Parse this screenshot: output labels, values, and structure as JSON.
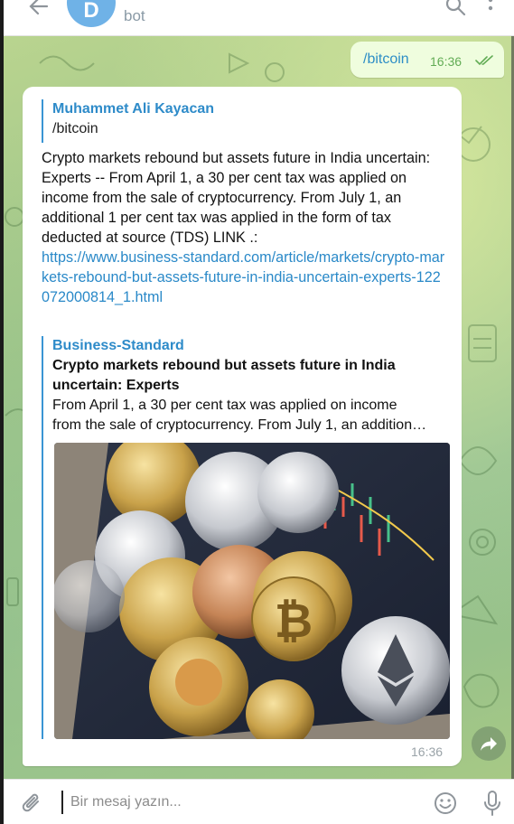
{
  "header": {
    "avatar_letter": "D",
    "subtitle": "bot",
    "icons": [
      "back-arrow-icon",
      "search-icon",
      "more-vertical-icon"
    ]
  },
  "outgoing": {
    "text": "/bitcoin",
    "time": "16:36",
    "status_icon": "double-check-icon"
  },
  "incoming": {
    "reply": {
      "name": "Muhammet Ali Kayacan",
      "text": "/bitcoin"
    },
    "text": "Crypto markets rebound but assets future in India uncertain: Experts -- From April 1, a 30 per cent tax was applied on income from the sale of cryptocurrency. From July 1, an additional 1 per cent tax was applied in the form of tax deducted at source (TDS) LINK .:",
    "link": "https://www.business-standard.com/article/markets/crypto-markets-rebound-but-assets-future-in-india-uncertain-experts-122072000814_1.html",
    "preview": {
      "site": "Business-Standard",
      "title": "Crypto markets rebound but assets future in India uncertain: Experts",
      "desc_line1": "From April 1, a 30 per cent tax was applied on income",
      "desc_line2": "from the sale of cryptocurrency. From July 1, an addition…"
    },
    "time": "16:36"
  },
  "composer": {
    "placeholder": "Bir mesaj yazın..."
  },
  "colors": {
    "accent": "#2e8bc9",
    "outgoing_bg": "#effdde",
    "check": "#62ac55"
  }
}
